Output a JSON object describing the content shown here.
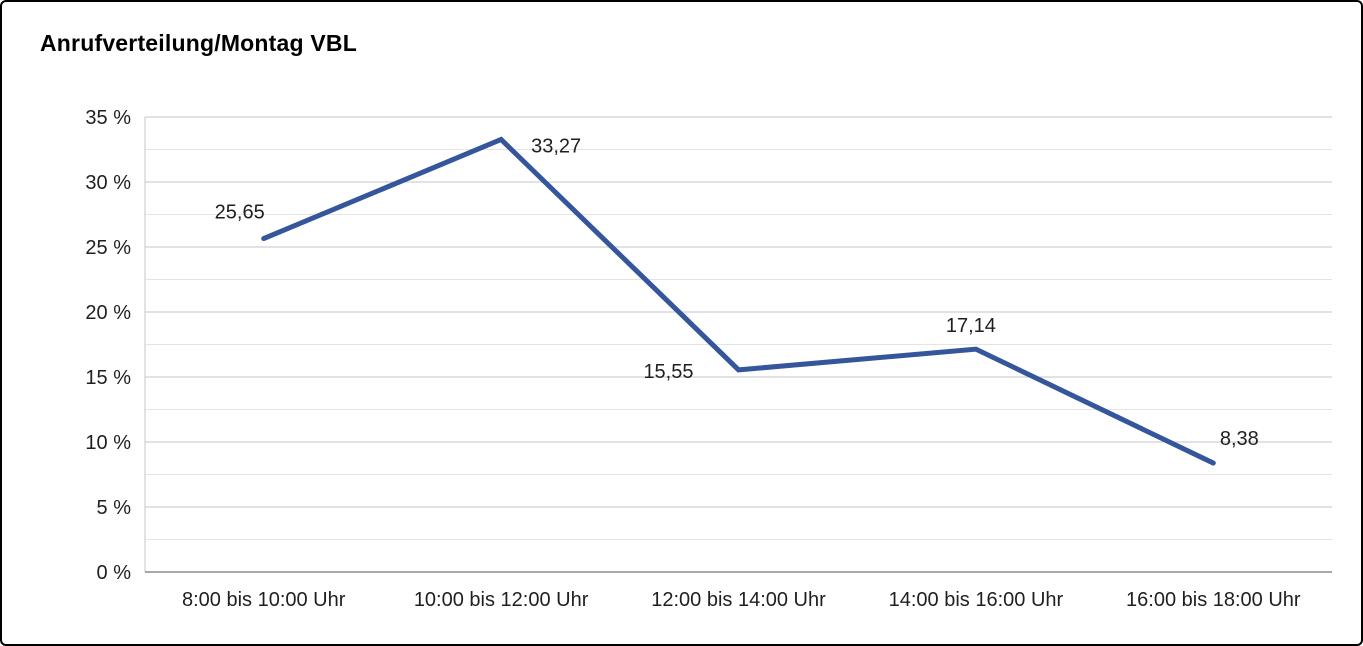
{
  "page": {
    "title": "Anrufverteilung/Montag VBL"
  },
  "chart_data": {
    "type": "line",
    "title": "Anrufverteilung/Montag VBL",
    "categories": [
      "8:00 bis 10:00 Uhr",
      "10:00 bis 12:00 Uhr",
      "12:00 bis 14:00 Uhr",
      "14:00 bis 16:00 Uhr",
      "16:00 bis 18:00 Uhr"
    ],
    "values": [
      25.65,
      33.27,
      15.55,
      17.14,
      8.38
    ],
    "data_labels": [
      "25,65",
      "33,27",
      "15,55",
      "17,14",
      "8,38"
    ],
    "xlabel": "",
    "ylabel": "",
    "ylim": [
      0,
      35
    ],
    "y_major_step": 5,
    "y_minor_step": 2.5,
    "y_tick_labels": [
      "0 %",
      "5 %",
      "10 %",
      "15 %",
      "20 %",
      "25 %",
      "30 %",
      "35 %"
    ],
    "grid": true,
    "legend_position": "none",
    "line_color": "#35569B",
    "line_width": 5
  },
  "colors": {
    "line": "#35569B",
    "grid_major": "#c6c6c6",
    "grid_minor": "#e4e4e4",
    "axis": "#8c8c8c",
    "text": "#1f1f1f",
    "border": "#000000",
    "background": "#ffffff"
  }
}
